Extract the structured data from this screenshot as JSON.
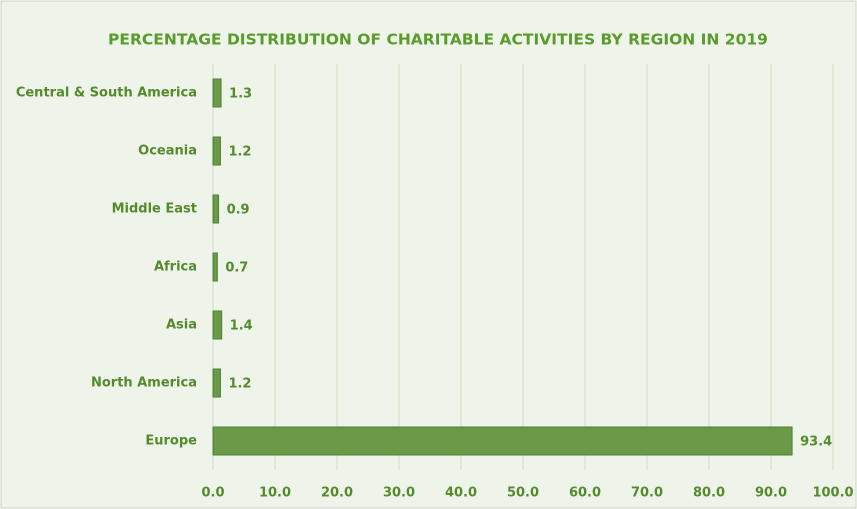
{
  "chart_data": {
    "type": "barh",
    "title": "PERCENTAGE DISTRIBUTION OF CHARITABLE ACTIVITIES BY REGION IN 2019",
    "categories": [
      "Central & South America",
      "Oceania",
      "Middle East",
      "Africa",
      "Asia",
      "North America",
      "Europe"
    ],
    "values": [
      1.3,
      1.2,
      0.9,
      0.7,
      1.4,
      1.2,
      93.4
    ],
    "color": "#6a9a48",
    "xlim": [
      0,
      100
    ],
    "xticks": [
      {
        "value": 0,
        "label": "0.0"
      },
      {
        "value": 10,
        "label": "10.0"
      },
      {
        "value": 20,
        "label": "20.0"
      },
      {
        "value": 30,
        "label": "30.0"
      },
      {
        "value": 40,
        "label": "40.0"
      },
      {
        "value": 50,
        "label": "50.0"
      },
      {
        "value": 60,
        "label": "60.0"
      },
      {
        "value": 70,
        "label": "70.0"
      },
      {
        "value": 80,
        "label": "80.0"
      },
      {
        "value": 90,
        "label": "90.0"
      },
      {
        "value": 100,
        "label": "100.0"
      }
    ],
    "grid": true
  }
}
